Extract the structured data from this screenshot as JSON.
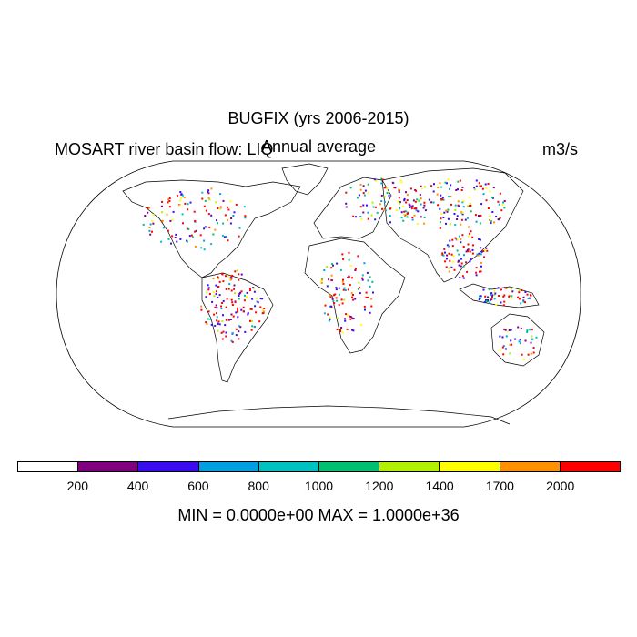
{
  "title": "BUGFIX (yrs 2006-2015)",
  "left_label": "MOSART river basin flow: LIQ",
  "center_label": "Annual average",
  "units": "m3/s",
  "colorbar": {
    "colors": [
      "#ffffff",
      "#800080",
      "#3a0cf0",
      "#00a0e0",
      "#00c0c0",
      "#00c070",
      "#b0f000",
      "#ffff00",
      "#ff9000",
      "#ff0000"
    ],
    "tick_labels": [
      "200",
      "400",
      "600",
      "800",
      "1000",
      "1200",
      "1400",
      "1700",
      "2000"
    ]
  },
  "stats": "MIN = 0.0000e+00 MAX = 1.0000e+36"
}
